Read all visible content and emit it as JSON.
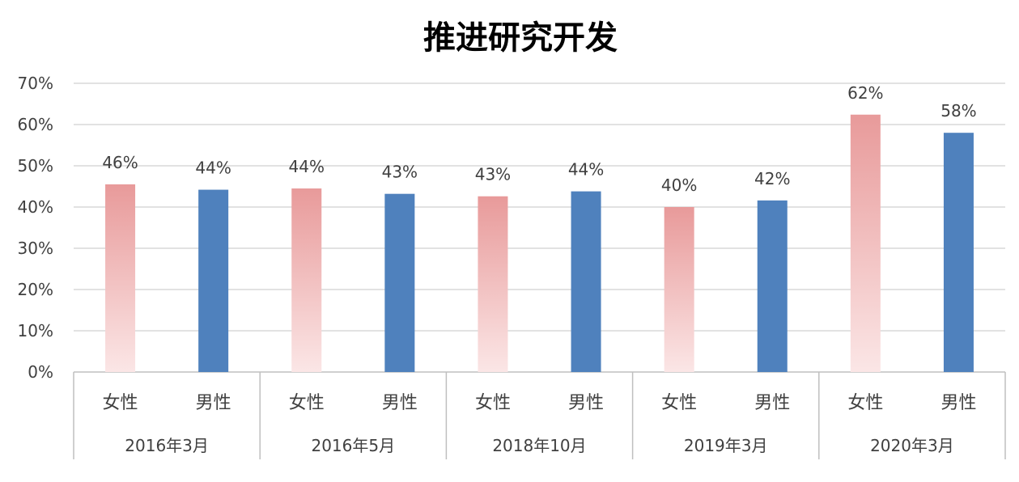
{
  "chart_data": {
    "type": "bar",
    "title": "推进研究开发",
    "xlabel": "",
    "ylabel": "",
    "ylim": [
      0,
      70
    ],
    "y_ticks": [
      "0%",
      "10%",
      "20%",
      "30%",
      "40%",
      "50%",
      "60%",
      "70%"
    ],
    "grid": true,
    "groups": [
      "2016年3月",
      "2016年5月",
      "2018年10月",
      "2019年3月",
      "2020年3月"
    ],
    "categories": [
      "女性",
      "男性",
      "女性",
      "男性",
      "女性",
      "男性",
      "女性",
      "男性",
      "女性",
      "男性"
    ],
    "values": [
      45.5,
      44.2,
      44.5,
      43.2,
      42.6,
      43.8,
      40.0,
      41.6,
      62.4,
      58.0
    ],
    "data_labels": [
      "46%",
      "44%",
      "44%",
      "43%",
      "43%",
      "44%",
      "40%",
      "42%",
      "62%",
      "58%"
    ],
    "colors": {
      "female": "#e89a9a",
      "female_fade": "#fbe6e6",
      "male": "#4f81bd",
      "grid": "#d9d9d9",
      "axis": "#bfbfbf"
    }
  }
}
